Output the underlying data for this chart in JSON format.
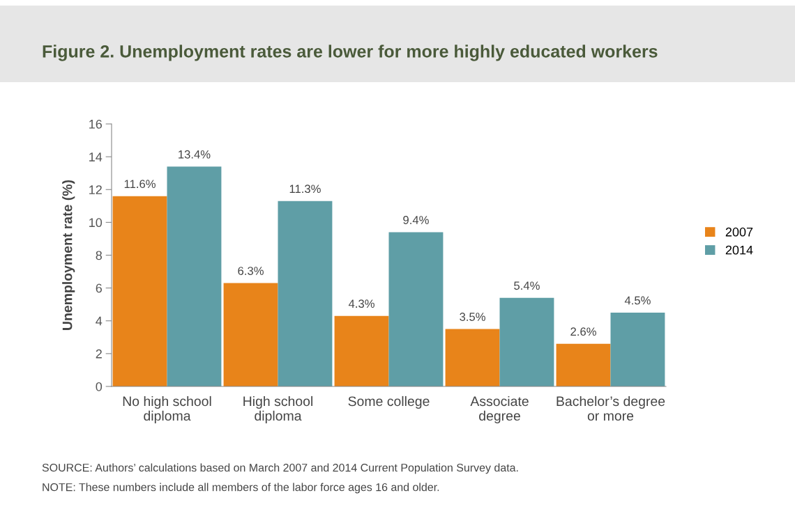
{
  "chart_data": {
    "type": "bar",
    "title": "Figure 2. Unemployment rates are lower for more highly educated workers",
    "ylabel": "Unemployment rate (%)",
    "categories": [
      "No high school\ndiploma",
      "High school\ndiploma",
      "Some college",
      "Associate\ndegree",
      "Bachelor’s degree\nor more"
    ],
    "series": [
      {
        "name": "2007",
        "color": "#e8841a",
        "values": [
          11.6,
          6.3,
          4.3,
          3.5,
          2.6
        ],
        "value_labels": [
          "11.6%",
          "6.3%",
          "4.3%",
          "3.5%",
          "2.6%"
        ]
      },
      {
        "name": "2014",
        "color": "#5f9ea6",
        "values": [
          13.4,
          11.3,
          9.4,
          5.4,
          4.5
        ],
        "value_labels": [
          "13.4%",
          "11.3%",
          "9.4%",
          "5.4%",
          "4.5%"
        ]
      }
    ],
    "ylim": [
      0,
      16
    ],
    "yticks": [
      0,
      2,
      4,
      6,
      8,
      10,
      12,
      14,
      16
    ],
    "grid": false,
    "legend": "right",
    "annotations": [
      "SOURCE: Authors’ calculations based on March 2007 and 2014 Current Population Survey data.",
      "NOTE: These numbers include all members of the labor force ages 16 and older."
    ]
  }
}
